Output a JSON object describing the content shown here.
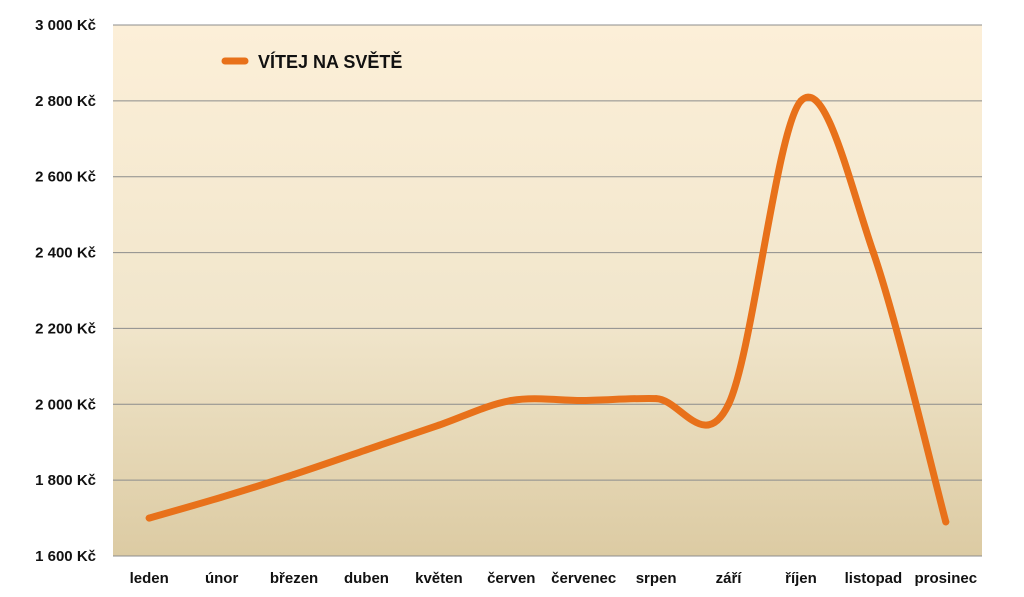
{
  "chart_data": {
    "type": "line",
    "title": "",
    "xlabel": "",
    "ylabel": "",
    "categories": [
      "leden",
      "únor",
      "březen",
      "duben",
      "květen",
      "červen",
      "červenec",
      "srpen",
      "září",
      "říjen",
      "listopad",
      "prosinec"
    ],
    "series": [
      {
        "name": "VÍTEJ NA SVĚTĚ",
        "values": [
          1700,
          1755,
          1815,
          1880,
          1945,
          2010,
          2010,
          2015,
          2000,
          2800,
          2400,
          1690
        ]
      }
    ],
    "ylim": [
      1600,
      3000
    ],
    "yticks": [
      1600,
      1800,
      2000,
      2200,
      2400,
      2600,
      2800,
      3000
    ],
    "ytick_labels": [
      "1 600 Kč",
      "1 800 Kč",
      "2 000 Kč",
      "2 200 Kč",
      "2 400 Kč",
      "2 600 Kč",
      "2 800 Kč",
      "3 000 Kč"
    ],
    "grid": true,
    "legend_position": "top-left",
    "smooth": true,
    "colors": {
      "line": "#E8711A",
      "grid": "#8c8c8c",
      "plot_bg_top": "#FCEFD8",
      "plot_bg_bottom": "#DCCBA3"
    }
  }
}
